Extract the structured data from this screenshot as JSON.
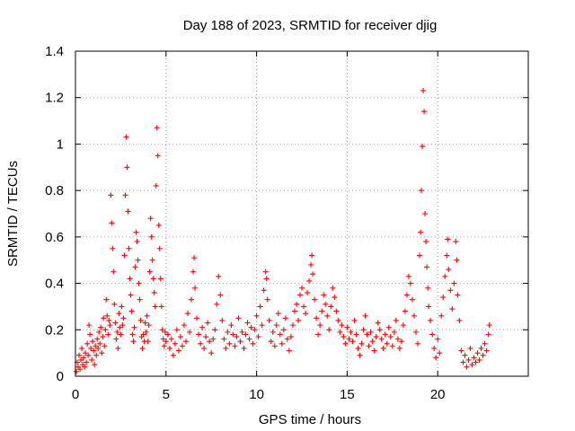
{
  "chart_data": {
    "type": "scatter",
    "title": "Day 188 of 2023, SRMTID for receiver djig",
    "xlabel": "GPS time / hours",
    "ylabel": "SRMTID / TECUs",
    "xlim": [
      0,
      25
    ],
    "ylim": [
      0,
      1.4
    ],
    "xticks": [
      0,
      5,
      10,
      15,
      20
    ],
    "xtick_labels": [
      "0",
      "5",
      "10",
      "15",
      "20"
    ],
    "yticks": [
      0,
      0.2,
      0.4,
      0.6,
      0.8,
      1.0,
      1.2,
      1.4
    ],
    "ytick_labels": [
      "0",
      "0.2",
      "0.4",
      "0.6",
      "0.8",
      "1",
      "1.2",
      "1.4"
    ],
    "grid": true,
    "marker": "+",
    "color": "#ff0000",
    "series": [
      {
        "name": "SRMTID",
        "points": [
          [
            0.05,
            0.02
          ],
          [
            0.1,
            0.06
          ],
          [
            0.15,
            0.04
          ],
          [
            0.2,
            0.09
          ],
          [
            0.25,
            0.03
          ],
          [
            0.3,
            0.07
          ],
          [
            0.35,
            0.12
          ],
          [
            0.4,
            0.05
          ],
          [
            0.45,
            0.08
          ],
          [
            0.5,
            0.04
          ],
          [
            0.55,
            0.1
          ],
          [
            0.6,
            0.06
          ],
          [
            0.65,
            0.14
          ],
          [
            0.7,
            0.09
          ],
          [
            0.75,
            0.22
          ],
          [
            0.8,
            0.18
          ],
          [
            0.85,
            0.12
          ],
          [
            0.9,
            0.07
          ],
          [
            0.95,
            0.15
          ],
          [
            1.0,
            0.11
          ],
          [
            1.05,
            0.05
          ],
          [
            1.1,
            0.13
          ],
          [
            1.15,
            0.09
          ],
          [
            1.2,
            0.16
          ],
          [
            1.25,
            0.12
          ],
          [
            1.3,
            0.19
          ],
          [
            1.35,
            0.14
          ],
          [
            1.4,
            0.21
          ],
          [
            1.45,
            0.1
          ],
          [
            1.5,
            0.17
          ],
          [
            1.55,
            0.25
          ],
          [
            1.6,
            0.13
          ],
          [
            1.65,
            0.2
          ],
          [
            1.7,
            0.33
          ],
          [
            1.75,
            0.26
          ],
          [
            1.8,
            0.18
          ],
          [
            1.85,
            0.24
          ],
          [
            1.9,
            0.22
          ],
          [
            1.95,
            0.78
          ],
          [
            2.0,
            0.66
          ],
          [
            2.05,
            0.55
          ],
          [
            2.1,
            0.45
          ],
          [
            2.15,
            0.31
          ],
          [
            2.2,
            0.23
          ],
          [
            2.25,
            0.16
          ],
          [
            2.3,
            0.19
          ],
          [
            2.35,
            0.12
          ],
          [
            2.4,
            0.27
          ],
          [
            2.45,
            0.21
          ],
          [
            2.5,
            0.18
          ],
          [
            2.55,
            0.3
          ],
          [
            2.6,
            0.22
          ],
          [
            2.65,
            0.25
          ],
          [
            2.7,
            0.52
          ],
          [
            2.75,
            0.78
          ],
          [
            2.8,
            1.03
          ],
          [
            2.85,
            0.9
          ],
          [
            2.9,
            0.71
          ],
          [
            2.95,
            0.55
          ],
          [
            3.0,
            0.42
          ],
          [
            3.05,
            0.35
          ],
          [
            3.1,
            0.28
          ],
          [
            3.15,
            0.18
          ],
          [
            3.2,
            0.15
          ],
          [
            3.25,
            0.21
          ],
          [
            3.3,
            0.47
          ],
          [
            3.35,
            0.62
          ],
          [
            3.4,
            0.58
          ],
          [
            3.45,
            0.5
          ],
          [
            3.5,
            0.4
          ],
          [
            3.55,
            0.33
          ],
          [
            3.6,
            0.24
          ],
          [
            3.65,
            0.17
          ],
          [
            3.7,
            0.12
          ],
          [
            3.75,
            0.18
          ],
          [
            3.8,
            0.15
          ],
          [
            3.85,
            0.23
          ],
          [
            3.9,
            0.19
          ],
          [
            3.95,
            0.26
          ],
          [
            4.0,
            0.15
          ],
          [
            4.05,
            0.22
          ],
          [
            4.1,
            0.45
          ],
          [
            4.15,
            0.68
          ],
          [
            4.2,
            0.6
          ],
          [
            4.25,
            0.5
          ],
          [
            4.3,
            0.42
          ],
          [
            4.35,
            0.36
          ],
          [
            4.4,
            0.3
          ],
          [
            4.45,
            0.82
          ],
          [
            4.5,
            1.07
          ],
          [
            4.55,
            0.95
          ],
          [
            4.6,
            0.65
          ],
          [
            4.65,
            0.55
          ],
          [
            4.7,
            0.42
          ],
          [
            4.75,
            0.3
          ],
          [
            4.8,
            0.2
          ],
          [
            4.85,
            0.16
          ],
          [
            4.9,
            0.13
          ],
          [
            4.95,
            0.19
          ],
          [
            5.0,
            0.15
          ],
          [
            5.1,
            0.18
          ],
          [
            5.2,
            0.12
          ],
          [
            5.3,
            0.16
          ],
          [
            5.4,
            0.09
          ],
          [
            5.5,
            0.14
          ],
          [
            5.6,
            0.2
          ],
          [
            5.7,
            0.11
          ],
          [
            5.8,
            0.17
          ],
          [
            5.9,
            0.13
          ],
          [
            6.0,
            0.22
          ],
          [
            6.1,
            0.15
          ],
          [
            6.2,
            0.27
          ],
          [
            6.3,
            0.19
          ],
          [
            6.4,
            0.33
          ],
          [
            6.5,
            0.45
          ],
          [
            6.55,
            0.51
          ],
          [
            6.6,
            0.38
          ],
          [
            6.7,
            0.25
          ],
          [
            6.8,
            0.18
          ],
          [
            6.9,
            0.14
          ],
          [
            7.0,
            0.21
          ],
          [
            7.1,
            0.12
          ],
          [
            7.2,
            0.17
          ],
          [
            7.3,
            0.23
          ],
          [
            7.4,
            0.15
          ],
          [
            7.5,
            0.1
          ],
          [
            7.6,
            0.16
          ],
          [
            7.7,
            0.2
          ],
          [
            7.8,
            0.31
          ],
          [
            7.9,
            0.43
          ],
          [
            8.0,
            0.35
          ],
          [
            8.1,
            0.24
          ],
          [
            8.2,
            0.16
          ],
          [
            8.3,
            0.12
          ],
          [
            8.4,
            0.19
          ],
          [
            8.5,
            0.14
          ],
          [
            8.6,
            0.22
          ],
          [
            8.7,
            0.18
          ],
          [
            8.8,
            0.13
          ],
          [
            8.9,
            0.17
          ],
          [
            9.0,
            0.25
          ],
          [
            9.1,
            0.15
          ],
          [
            9.2,
            0.19
          ],
          [
            9.3,
            0.12
          ],
          [
            9.4,
            0.18
          ],
          [
            9.5,
            0.23
          ],
          [
            9.6,
            0.16
          ],
          [
            9.7,
            0.21
          ],
          [
            9.8,
            0.14
          ],
          [
            9.9,
            0.2
          ],
          [
            10.0,
            0.26
          ],
          [
            10.1,
            0.17
          ],
          [
            10.2,
            0.3
          ],
          [
            10.3,
            0.22
          ],
          [
            10.4,
            0.37
          ],
          [
            10.5,
            0.45
          ],
          [
            10.55,
            0.42
          ],
          [
            10.6,
            0.33
          ],
          [
            10.7,
            0.24
          ],
          [
            10.8,
            0.15
          ],
          [
            10.9,
            0.19
          ],
          [
            11.0,
            0.13
          ],
          [
            11.1,
            0.22
          ],
          [
            11.2,
            0.27
          ],
          [
            11.3,
            0.18
          ],
          [
            11.4,
            0.14
          ],
          [
            11.5,
            0.2
          ],
          [
            11.6,
            0.25
          ],
          [
            11.7,
            0.16
          ],
          [
            11.8,
            0.11
          ],
          [
            11.9,
            0.17
          ],
          [
            12.0,
            0.22
          ],
          [
            12.1,
            0.28
          ],
          [
            12.2,
            0.31
          ],
          [
            12.3,
            0.24
          ],
          [
            12.4,
            0.35
          ],
          [
            12.5,
            0.38
          ],
          [
            12.6,
            0.3
          ],
          [
            12.7,
            0.27
          ],
          [
            12.8,
            0.36
          ],
          [
            12.9,
            0.41
          ],
          [
            13.0,
            0.48
          ],
          [
            13.05,
            0.52
          ],
          [
            13.1,
            0.44
          ],
          [
            13.2,
            0.33
          ],
          [
            13.3,
            0.25
          ],
          [
            13.4,
            0.18
          ],
          [
            13.5,
            0.22
          ],
          [
            13.6,
            0.28
          ],
          [
            13.7,
            0.35
          ],
          [
            13.8,
            0.31
          ],
          [
            13.9,
            0.26
          ],
          [
            14.0,
            0.2
          ],
          [
            14.1,
            0.3
          ],
          [
            14.2,
            0.38
          ],
          [
            14.3,
            0.34
          ],
          [
            14.4,
            0.28
          ],
          [
            14.5,
            0.24
          ],
          [
            14.6,
            0.19
          ],
          [
            14.7,
            0.22
          ],
          [
            14.8,
            0.17
          ],
          [
            14.9,
            0.14
          ],
          [
            15.0,
            0.21
          ],
          [
            15.1,
            0.16
          ],
          [
            15.2,
            0.19
          ],
          [
            15.3,
            0.15
          ],
          [
            15.4,
            0.24
          ],
          [
            15.5,
            0.18
          ],
          [
            15.6,
            0.12
          ],
          [
            15.7,
            0.09
          ],
          [
            15.8,
            0.14
          ],
          [
            15.9,
            0.2
          ],
          [
            16.0,
            0.26
          ],
          [
            16.1,
            0.18
          ],
          [
            16.2,
            0.13
          ],
          [
            16.3,
            0.19
          ],
          [
            16.4,
            0.15
          ],
          [
            16.5,
            0.11
          ],
          [
            16.6,
            0.17
          ],
          [
            16.7,
            0.23
          ],
          [
            16.8,
            0.2
          ],
          [
            16.9,
            0.16
          ],
          [
            17.0,
            0.12
          ],
          [
            17.1,
            0.18
          ],
          [
            17.2,
            0.14
          ],
          [
            17.3,
            0.21
          ],
          [
            17.4,
            0.17
          ],
          [
            17.5,
            0.13
          ],
          [
            17.6,
            0.19
          ],
          [
            17.7,
            0.24
          ],
          [
            17.8,
            0.16
          ],
          [
            17.9,
            0.12
          ],
          [
            18.0,
            0.15
          ],
          [
            18.1,
            0.22
          ],
          [
            18.2,
            0.28
          ],
          [
            18.3,
            0.35
          ],
          [
            18.4,
            0.43
          ],
          [
            18.5,
            0.4
          ],
          [
            18.6,
            0.33
          ],
          [
            18.7,
            0.26
          ],
          [
            18.8,
            0.19
          ],
          [
            18.9,
            0.14
          ],
          [
            19.0,
            0.52
          ],
          [
            19.05,
            0.62
          ],
          [
            19.1,
            0.8
          ],
          [
            19.15,
            0.99
          ],
          [
            19.2,
            1.23
          ],
          [
            19.25,
            1.14
          ],
          [
            19.3,
            0.7
          ],
          [
            19.35,
            0.58
          ],
          [
            19.4,
            0.47
          ],
          [
            19.45,
            0.38
          ],
          [
            19.5,
            0.3
          ],
          [
            19.6,
            0.24
          ],
          [
            19.7,
            0.18
          ],
          [
            19.8,
            0.12
          ],
          [
            19.9,
            0.08
          ],
          [
            20.0,
            0.16
          ],
          [
            20.1,
            0.1
          ],
          [
            20.2,
            0.26
          ],
          [
            20.3,
            0.34
          ],
          [
            20.4,
            0.43
          ],
          [
            20.5,
            0.52
          ],
          [
            20.55,
            0.59
          ],
          [
            20.6,
            0.46
          ],
          [
            20.7,
            0.37
          ],
          [
            20.8,
            0.29
          ],
          [
            20.9,
            0.4
          ],
          [
            21.0,
            0.58
          ],
          [
            21.05,
            0.5
          ],
          [
            21.1,
            0.35
          ],
          [
            21.2,
            0.24
          ],
          [
            21.3,
            0.11
          ],
          [
            21.4,
            0.06
          ],
          [
            21.5,
            0.09
          ],
          [
            21.6,
            0.04
          ],
          [
            21.7,
            0.07
          ],
          [
            21.8,
            0.12
          ],
          [
            21.9,
            0.05
          ],
          [
            22.0,
            0.08
          ],
          [
            22.1,
            0.06
          ],
          [
            22.2,
            0.1
          ],
          [
            22.3,
            0.07
          ],
          [
            22.4,
            0.12
          ],
          [
            22.5,
            0.09
          ],
          [
            22.6,
            0.14
          ],
          [
            22.7,
            0.11
          ],
          [
            22.8,
            0.18
          ],
          [
            22.85,
            0.22
          ]
        ]
      }
    ]
  }
}
